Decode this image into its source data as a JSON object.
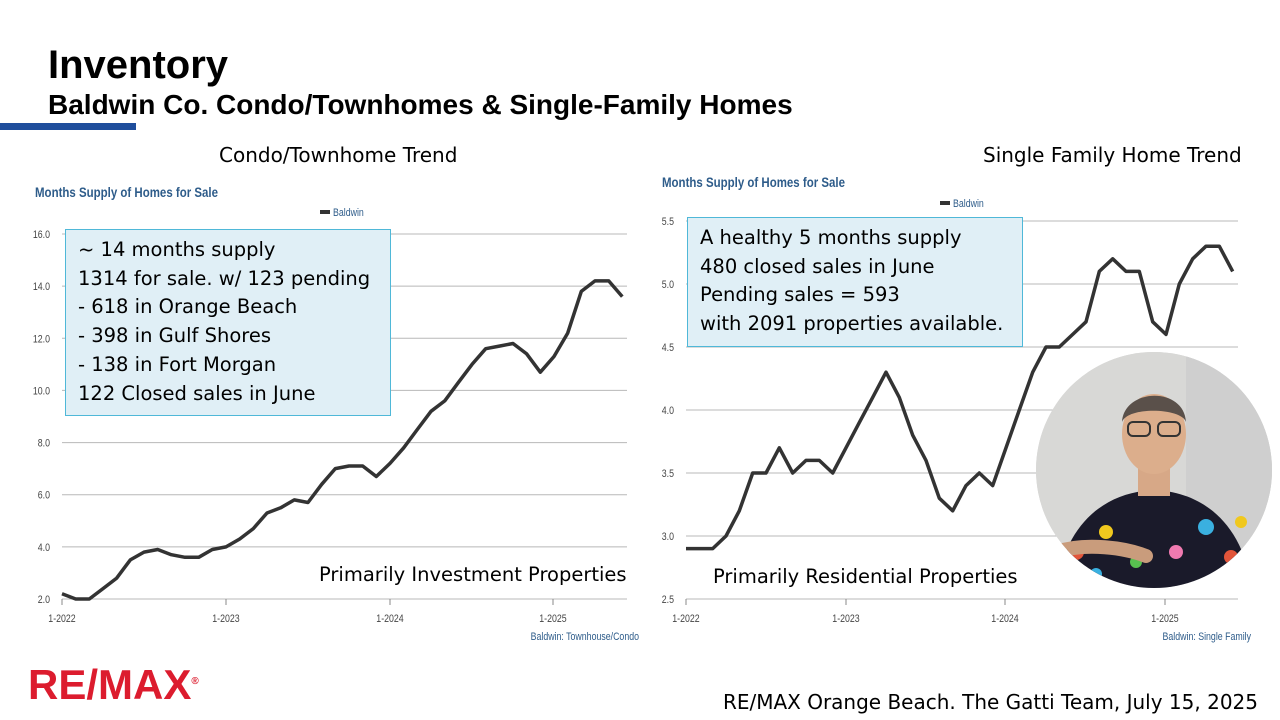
{
  "header": {
    "title": "Inventory",
    "subtitle": "Baldwin Co. Condo/Townhomes & Single-Family Homes"
  },
  "colors": {
    "accent": "#1f4e9c",
    "brand_red": "#dc1c2e",
    "callout_bg": "#e0eff6",
    "callout_border": "#4fb8d8",
    "axis_label": "#2e5c8a",
    "series": "#333333"
  },
  "left_panel": {
    "heading": "Condo/Townhome Trend",
    "callout": [
      "~ 14 months supply",
      "1314 for sale. w/ 123 pending",
      "- 618 in Orange Beach",
      "- 398 in Gulf Shores",
      "- 138 in Fort Morgan",
      "122 Closed sales in June"
    ],
    "footnote": "Primarily Investment Properties"
  },
  "right_panel": {
    "heading": "Single Family Home Trend",
    "callout": [
      "A healthy 5 months supply",
      "480 closed sales in June",
      "Pending sales = 593",
      "with 2091 properties available."
    ],
    "footnote": "Primarily Residential Properties"
  },
  "chart_data": [
    {
      "type": "line",
      "title": "Months Supply of Homes for Sale",
      "legend": [
        "Baldwin"
      ],
      "legend_position": "top-right",
      "source": "Baldwin: Townhouse/Condo",
      "x_tick_labels": [
        "1-2022",
        "1-2023",
        "1-2024",
        "1-2025"
      ],
      "x_start": "1-2022",
      "ylim": [
        2.0,
        16.0
      ],
      "y_ticks": [
        "2.0",
        "4.0",
        "6.0",
        "8.0",
        "10.0",
        "12.0",
        "14.0",
        "16.0"
      ],
      "grid": true,
      "series": [
        {
          "name": "Baldwin",
          "values": [
            2.2,
            2.0,
            2.0,
            2.4,
            2.8,
            3.5,
            3.8,
            3.9,
            3.7,
            3.6,
            3.6,
            3.9,
            4.0,
            4.3,
            4.7,
            5.3,
            5.5,
            5.8,
            5.7,
            6.4,
            7.0,
            7.1,
            7.1,
            6.7,
            7.2,
            7.8,
            8.5,
            9.2,
            9.6,
            10.3,
            11.0,
            11.6,
            11.7,
            11.8,
            11.4,
            10.7,
            11.3,
            12.2,
            13.8,
            14.2,
            14.2,
            13.6
          ]
        }
      ]
    },
    {
      "type": "line",
      "title": "Months Supply of Homes for Sale",
      "legend": [
        "Baldwin"
      ],
      "legend_position": "top-right",
      "source": "Baldwin: Single Family",
      "x_tick_labels": [
        "1-2022",
        "1-2023",
        "1-2024",
        "1-2025"
      ],
      "x_start": "1-2022",
      "ylim": [
        2.5,
        5.5
      ],
      "y_ticks": [
        "2.5",
        "3.0",
        "3.5",
        "4.0",
        "4.5",
        "5.0",
        "5.5"
      ],
      "grid": true,
      "series": [
        {
          "name": "Baldwin",
          "values": [
            2.9,
            2.9,
            2.9,
            3.0,
            3.2,
            3.5,
            3.5,
            3.7,
            3.5,
            3.6,
            3.6,
            3.5,
            3.7,
            3.9,
            4.1,
            4.3,
            4.1,
            3.8,
            3.6,
            3.3,
            3.2,
            3.4,
            3.5,
            3.4,
            3.7,
            4.0,
            4.3,
            4.5,
            4.5,
            4.6,
            4.7,
            5.1,
            5.2,
            5.1,
            5.1,
            4.7,
            4.6,
            5.0,
            5.2,
            5.3,
            5.3,
            5.1
          ]
        }
      ]
    }
  ],
  "logo_text": "RE/MAX",
  "footer": "RE/MAX Orange Beach. The Gatti Team, July 15, 2025"
}
